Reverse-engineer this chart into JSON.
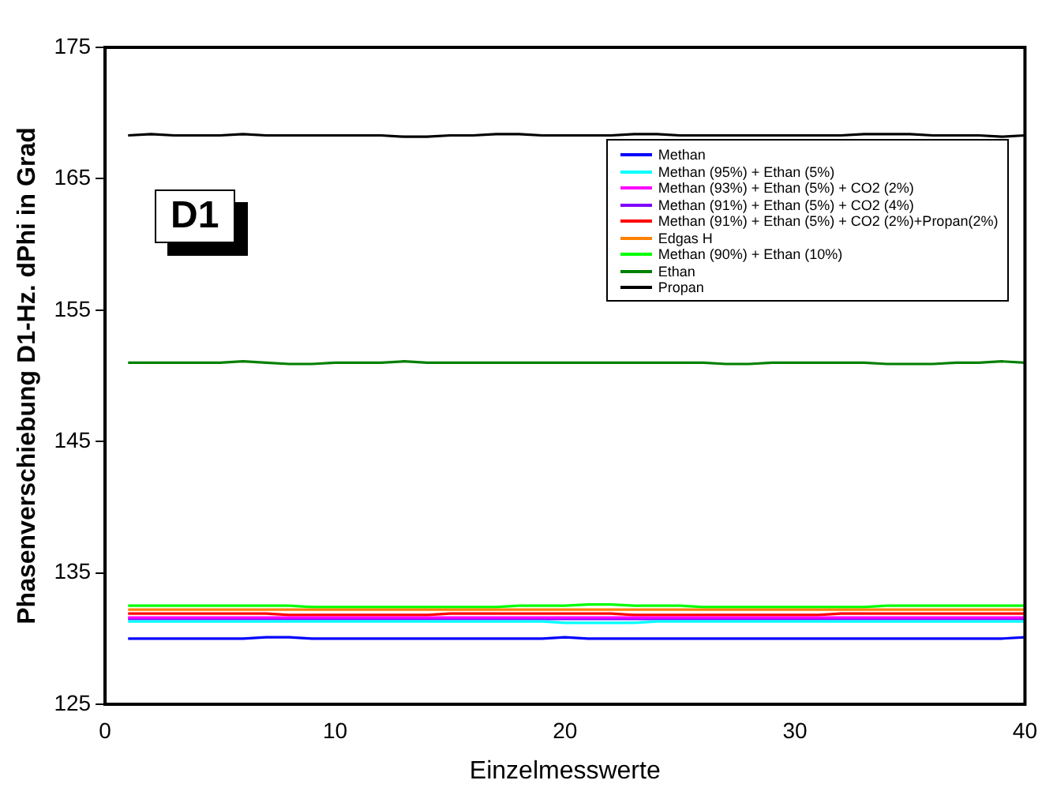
{
  "chart_data": {
    "type": "line",
    "xlabel": "Einzelmesswerte",
    "ylabel": "Phasenverschiebung D1-Hz. dPhi in Grad",
    "annotations": [
      "D1"
    ],
    "x": [
      1,
      2,
      3,
      4,
      5,
      6,
      7,
      8,
      9,
      10,
      11,
      12,
      13,
      14,
      15,
      16,
      17,
      18,
      19,
      20,
      21,
      22,
      23,
      24,
      25,
      26,
      27,
      28,
      29,
      30,
      31,
      32,
      33,
      34,
      35,
      36,
      37,
      38,
      39,
      40
    ],
    "xlim": [
      0,
      40
    ],
    "xticks": [
      0,
      10,
      20,
      30,
      40
    ],
    "ylim": [
      125,
      175
    ],
    "yticks": [
      125,
      135,
      145,
      155,
      165,
      175
    ],
    "grid": false,
    "legend": "top right",
    "marker": "none",
    "line_style": "solid",
    "series": [
      {
        "name": "Methan",
        "color": "#0000ff",
        "values": [
          130,
          130,
          130,
          130,
          130,
          130,
          130.1,
          130.1,
          130,
          130,
          130,
          130,
          130,
          130,
          130,
          130,
          130,
          130,
          130,
          130.1,
          130,
          130,
          130,
          130,
          130,
          130,
          130,
          130,
          130,
          130,
          130,
          130,
          130,
          130,
          130,
          130,
          130,
          130,
          130,
          130.1
        ]
      },
      {
        "name": "Methan (95%) + Ethan (5%)",
        "color": "#00ffff",
        "values": [
          131.3,
          131.3,
          131.3,
          131.3,
          131.3,
          131.3,
          131.3,
          131.3,
          131.3,
          131.3,
          131.3,
          131.3,
          131.3,
          131.3,
          131.3,
          131.3,
          131.3,
          131.3,
          131.3,
          131.2,
          131.2,
          131.2,
          131.2,
          131.3,
          131.3,
          131.3,
          131.3,
          131.3,
          131.3,
          131.3,
          131.3,
          131.3,
          131.3,
          131.3,
          131.3,
          131.3,
          131.3,
          131.3,
          131.3,
          131.3
        ]
      },
      {
        "name": "Methan (93%) + Ethan (5%) + CO2 (2%)",
        "color": "#ff00ff",
        "values": [
          131.6,
          131.6,
          131.6,
          131.6,
          131.6,
          131.6,
          131.6,
          131.6,
          131.6,
          131.6,
          131.6,
          131.6,
          131.6,
          131.6,
          131.6,
          131.6,
          131.6,
          131.6,
          131.6,
          131.6,
          131.6,
          131.6,
          131.6,
          131.6,
          131.6,
          131.6,
          131.6,
          131.6,
          131.6,
          131.6,
          131.6,
          131.6,
          131.6,
          131.6,
          131.6,
          131.6,
          131.6,
          131.6,
          131.6,
          131.6
        ]
      },
      {
        "name": "Methan (91%) + Ethan (5%) + CO2 (4%)",
        "color": "#8000ff",
        "values": [
          131.5,
          131.5,
          131.5,
          131.5,
          131.5,
          131.5,
          131.5,
          131.5,
          131.5,
          131.5,
          131.5,
          131.5,
          131.5,
          131.5,
          131.5,
          131.5,
          131.5,
          131.5,
          131.5,
          131.5,
          131.5,
          131.5,
          131.5,
          131.5,
          131.5,
          131.5,
          131.5,
          131.5,
          131.5,
          131.5,
          131.5,
          131.5,
          131.5,
          131.5,
          131.5,
          131.5,
          131.5,
          131.5,
          131.5,
          131.5
        ]
      },
      {
        "name": "Methan (91%) + Ethan (5%) + CO2 (2%)+Propan(2%)",
        "color": "#ff0000",
        "values": [
          131.9,
          131.9,
          131.9,
          131.9,
          131.9,
          131.9,
          131.9,
          131.8,
          131.8,
          131.8,
          131.8,
          131.8,
          131.8,
          131.8,
          131.9,
          131.9,
          131.9,
          131.9,
          131.9,
          131.9,
          131.9,
          131.9,
          131.8,
          131.8,
          131.8,
          131.8,
          131.8,
          131.8,
          131.8,
          131.8,
          131.8,
          131.9,
          131.9,
          131.9,
          131.9,
          131.9,
          131.9,
          131.9,
          131.9,
          131.9
        ]
      },
      {
        "name": "Edgas H",
        "color": "#ff8000",
        "values": [
          132.2,
          132.2,
          132.2,
          132.2,
          132.2,
          132.2,
          132.2,
          132.2,
          132.2,
          132.2,
          132.2,
          132.2,
          132.2,
          132.2,
          132.2,
          132.2,
          132.2,
          132.2,
          132.2,
          132.2,
          132.2,
          132.2,
          132.2,
          132.2,
          132.2,
          132.2,
          132.2,
          132.2,
          132.2,
          132.2,
          132.2,
          132.2,
          132.2,
          132.2,
          132.2,
          132.2,
          132.2,
          132.2,
          132.2,
          132.2
        ]
      },
      {
        "name": "Methan (90%) + Ethan (10%)",
        "color": "#00ff00",
        "values": [
          132.5,
          132.5,
          132.5,
          132.5,
          132.5,
          132.5,
          132.5,
          132.5,
          132.4,
          132.4,
          132.4,
          132.4,
          132.4,
          132.4,
          132.4,
          132.4,
          132.4,
          132.5,
          132.5,
          132.5,
          132.6,
          132.6,
          132.5,
          132.5,
          132.5,
          132.4,
          132.4,
          132.4,
          132.4,
          132.4,
          132.4,
          132.4,
          132.4,
          132.5,
          132.5,
          132.5,
          132.5,
          132.5,
          132.5,
          132.5
        ]
      },
      {
        "name": "Ethan",
        "color": "#008000",
        "values": [
          151,
          151,
          151,
          151,
          151,
          151.1,
          151,
          150.9,
          150.9,
          151,
          151,
          151,
          151.1,
          151,
          151,
          151,
          151,
          151,
          151,
          151,
          151,
          151,
          151,
          151,
          151,
          151,
          150.9,
          150.9,
          151,
          151,
          151,
          151,
          151,
          150.9,
          150.9,
          150.9,
          151,
          151,
          151.1,
          151
        ]
      },
      {
        "name": "Propan",
        "color": "#000000",
        "values": [
          168.3,
          168.4,
          168.3,
          168.3,
          168.3,
          168.4,
          168.3,
          168.3,
          168.3,
          168.3,
          168.3,
          168.3,
          168.2,
          168.2,
          168.3,
          168.3,
          168.4,
          168.4,
          168.3,
          168.3,
          168.3,
          168.3,
          168.4,
          168.4,
          168.3,
          168.3,
          168.3,
          168.3,
          168.3,
          168.3,
          168.3,
          168.3,
          168.4,
          168.4,
          168.4,
          168.3,
          168.3,
          168.3,
          168.2,
          168.3
        ]
      }
    ]
  }
}
